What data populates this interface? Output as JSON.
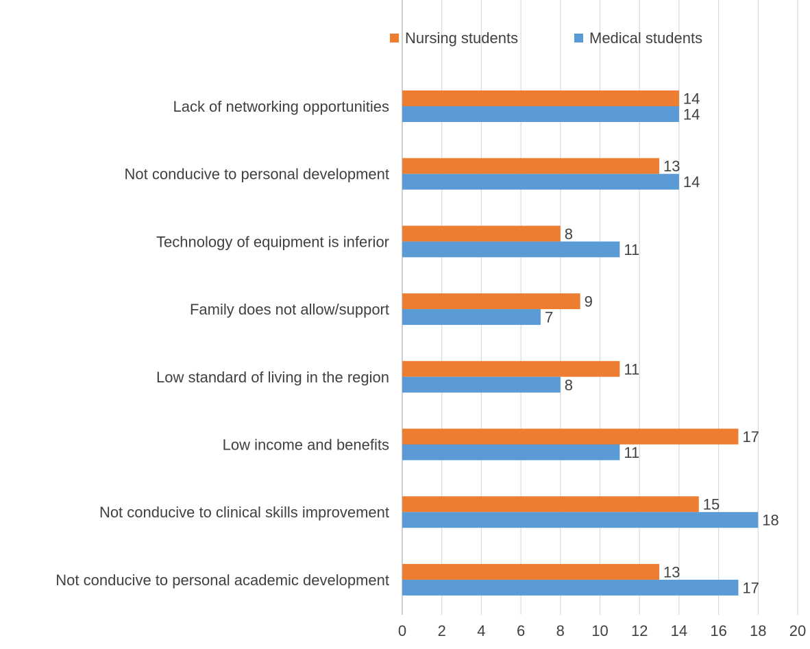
{
  "chart_data": {
    "type": "bar",
    "orientation": "horizontal",
    "categories": [
      "Lack of networking opportunities",
      "Not conducive to personal development",
      "Technology of equipment is inferior",
      "Family does not allow/support",
      "Low standard of living in the region",
      "Low income and benefits",
      "Not conducive to clinical skills improvement",
      "Not conducive to personal academic development"
    ],
    "series": [
      {
        "name": "Nursing students",
        "color": "#ED7D31",
        "values": [
          14,
          13,
          8,
          9,
          11,
          17,
          15,
          13
        ]
      },
      {
        "name": "Medical students",
        "color": "#5B9BD5",
        "values": [
          14,
          14,
          11,
          7,
          8,
          11,
          18,
          17
        ]
      }
    ],
    "xlim": [
      0,
      20
    ],
    "x_ticks": [
      "0",
      "2",
      "4",
      "6",
      "8",
      "10",
      "12",
      "14",
      "16",
      "18",
      "20"
    ],
    "x_axis_position": "top",
    "tick_labels_position": "bottom",
    "grid": true,
    "legend": "top-right",
    "data_labels": true,
    "title": "",
    "xlabel": "",
    "ylabel": ""
  }
}
